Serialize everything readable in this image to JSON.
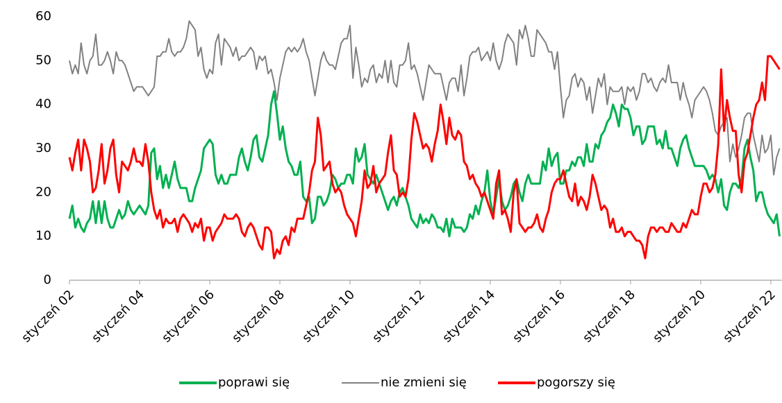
{
  "chart_data": {
    "type": "line",
    "categories": [
      "styczeń 02",
      null,
      null,
      null,
      null,
      null,
      null,
      null,
      null,
      null,
      null,
      null,
      null,
      null,
      null,
      null,
      null,
      null,
      null,
      null,
      null,
      null,
      null,
      null,
      "styczeń 04",
      null,
      null,
      null,
      null,
      null,
      null,
      null,
      null,
      null,
      null,
      null,
      null,
      null,
      null,
      null,
      null,
      null,
      null,
      null,
      null,
      null,
      null,
      null,
      "styczeń 06",
      null,
      null,
      null,
      null,
      null,
      null,
      null,
      null,
      null,
      null,
      null,
      null,
      null,
      null,
      null,
      null,
      null,
      null,
      null,
      null,
      null,
      null,
      null,
      "styczeń 08",
      null,
      null,
      null,
      null,
      null,
      null,
      null,
      null,
      null,
      null,
      null,
      null,
      null,
      null,
      null,
      null,
      null,
      null,
      null,
      null,
      null,
      null,
      null,
      "styczeń 10",
      null,
      null,
      null,
      null,
      null,
      null,
      null,
      null,
      null,
      null,
      null,
      null,
      null,
      null,
      null,
      null,
      null,
      null,
      null,
      null,
      null,
      null,
      null,
      "styczeń 12",
      null,
      null,
      null,
      null,
      null,
      null,
      null,
      null,
      null,
      null,
      null,
      null,
      null,
      null,
      null,
      null,
      null,
      null,
      null,
      null,
      null,
      null,
      null,
      "styczeń 14",
      null,
      null,
      null,
      null,
      null,
      null,
      null,
      null,
      null,
      null,
      null,
      null,
      null,
      null,
      null,
      null,
      null,
      null,
      null,
      null,
      null,
      null,
      null,
      "styczeń 16",
      null,
      null,
      null,
      null,
      null,
      null,
      null,
      null,
      null,
      null,
      null,
      null,
      null,
      null,
      null,
      null,
      null,
      null,
      null,
      null,
      null,
      null,
      null,
      "styczeń 18",
      null,
      null,
      null,
      null,
      null,
      null,
      null,
      null,
      null,
      null,
      null,
      null,
      null,
      null,
      null,
      null,
      null,
      null,
      null,
      null,
      null,
      null,
      null,
      "styczeń 20",
      null,
      null,
      null,
      null,
      null,
      null,
      null,
      null,
      null,
      null,
      null,
      null,
      null,
      null,
      null,
      null,
      null,
      null,
      null,
      null,
      null,
      null,
      null,
      "styczeń 22",
      null,
      null,
      null
    ],
    "series": [
      {
        "name": "poprawi się",
        "color": "#00b050",
        "values": [
          14,
          17,
          12,
          14,
          12,
          11,
          13,
          14,
          18,
          13,
          18,
          13,
          18,
          14,
          12,
          12,
          14,
          16,
          14,
          15,
          18,
          16,
          15,
          16,
          17,
          16,
          15,
          17,
          29,
          30,
          23,
          26,
          21,
          24,
          21,
          24,
          27,
          23,
          21,
          21,
          21,
          18,
          18,
          21,
          23,
          25,
          30,
          31,
          32,
          31,
          24,
          22,
          24,
          22,
          22,
          24,
          24,
          24,
          28,
          30,
          27,
          25,
          28,
          32,
          33,
          28,
          27,
          30,
          33,
          40,
          43,
          38,
          32,
          35,
          30,
          27,
          26,
          24,
          24,
          27,
          19,
          18,
          19,
          13,
          14,
          19,
          19,
          17,
          18,
          20,
          24,
          23,
          21,
          22,
          22,
          24,
          24,
          22,
          30,
          27,
          28,
          31,
          24,
          23,
          22,
          24,
          22,
          20,
          18,
          16,
          18,
          19,
          17,
          20,
          21,
          19,
          17,
          14,
          13,
          12,
          15,
          13,
          14,
          13,
          15,
          14,
          12,
          12,
          11,
          14,
          10,
          14,
          12,
          12,
          12,
          11,
          12,
          15,
          14,
          17,
          15,
          18,
          20,
          25,
          18,
          15,
          19,
          23,
          18,
          16,
          17,
          19,
          22,
          23,
          20,
          18,
          22,
          24,
          22,
          22,
          22,
          22,
          27,
          25,
          30,
          26,
          28,
          29,
          22,
          22,
          25,
          25,
          27,
          26,
          28,
          28,
          26,
          31,
          27,
          27,
          31,
          30,
          33,
          34,
          36,
          37,
          40,
          38,
          35,
          40,
          39,
          39,
          37,
          33,
          35,
          35,
          31,
          32,
          35,
          35,
          35,
          31,
          32,
          30,
          34,
          30,
          30,
          28,
          26,
          30,
          32,
          33,
          30,
          28,
          26,
          26,
          26,
          26,
          25,
          23,
          24,
          23,
          20,
          23,
          17,
          16,
          20,
          22,
          22,
          21,
          23,
          30,
          32,
          28,
          25,
          18,
          20,
          20,
          17,
          15,
          14,
          13,
          15,
          10
        ]
      },
      {
        "name": "nie zmieni się",
        "color": "#808080",
        "values": [
          50,
          47,
          49,
          47,
          54,
          49,
          47,
          50,
          51,
          56,
          49,
          49,
          50,
          52,
          50,
          47,
          52,
          50,
          50,
          49,
          47,
          45,
          43,
          44,
          44,
          44,
          43,
          42,
          43,
          44,
          51,
          51,
          52,
          52,
          55,
          52,
          51,
          52,
          52,
          53,
          55,
          59,
          58,
          57,
          51,
          53,
          48,
          46,
          48,
          47,
          54,
          56,
          49,
          55,
          54,
          53,
          51,
          53,
          50,
          51,
          51,
          52,
          53,
          52,
          48,
          51,
          50,
          51,
          47,
          48,
          45,
          41,
          46,
          49,
          52,
          53,
          52,
          53,
          52,
          53,
          55,
          52,
          50,
          46,
          42,
          46,
          50,
          52,
          50,
          49,
          49,
          48,
          51,
          54,
          55,
          55,
          58,
          46,
          53,
          49,
          44,
          46,
          45,
          48,
          49,
          45,
          47,
          46,
          50,
          45,
          50,
          45,
          44,
          49,
          49,
          50,
          54,
          48,
          49,
          47,
          44,
          41,
          45,
          49,
          48,
          47,
          47,
          47,
          44,
          41,
          45,
          46,
          46,
          43,
          49,
          42,
          46,
          51,
          52,
          52,
          53,
          50,
          51,
          52,
          50,
          54,
          50,
          48,
          50,
          54,
          56,
          55,
          54,
          49,
          57,
          55,
          58,
          55,
          51,
          51,
          57,
          56,
          55,
          54,
          52,
          52,
          48,
          52,
          44,
          37,
          41,
          42,
          46,
          47,
          44,
          46,
          45,
          41,
          44,
          38,
          42,
          46,
          44,
          47,
          40,
          44,
          43,
          43,
          43,
          44,
          40,
          44,
          43,
          44,
          41,
          43,
          47,
          47,
          45,
          46,
          44,
          43,
          45,
          46,
          45,
          49,
          45,
          45,
          45,
          41,
          45,
          42,
          40,
          37,
          41,
          42,
          43,
          44,
          43,
          41,
          38,
          34,
          33,
          35,
          36,
          37,
          27,
          31,
          28,
          30,
          33,
          37,
          38,
          38,
          33,
          30,
          27,
          33,
          29,
          30,
          33,
          24,
          28,
          30
        ]
      },
      {
        "name": "pogorszy się",
        "color": "#ff0000",
        "values": [
          28,
          25,
          29,
          32,
          25,
          32,
          30,
          27,
          20,
          21,
          25,
          31,
          22,
          25,
          30,
          32,
          24,
          20,
          27,
          26,
          25,
          27,
          30,
          27,
          27,
          26,
          31,
          27,
          20,
          16,
          14,
          16,
          12,
          14,
          13,
          13,
          14,
          11,
          14,
          15,
          14,
          13,
          11,
          13,
          12,
          14,
          9,
          12,
          12,
          9,
          11,
          12,
          13,
          15,
          14,
          14,
          14,
          15,
          14,
          11,
          10,
          12,
          13,
          12,
          10,
          8,
          7,
          12,
          12,
          11,
          5,
          7,
          6,
          9,
          10,
          8,
          12,
          11,
          14,
          14,
          14,
          17,
          20,
          25,
          27,
          37,
          33,
          25,
          26,
          27,
          22,
          20,
          21,
          20,
          17,
          15,
          14,
          13,
          10,
          14,
          18,
          25,
          21,
          22,
          26,
          20,
          22,
          23,
          24,
          29,
          33,
          25,
          24,
          19,
          20,
          19,
          23,
          32,
          38,
          36,
          33,
          30,
          31,
          30,
          27,
          31,
          34,
          40,
          36,
          31,
          37,
          33,
          32,
          34,
          33,
          27,
          26,
          23,
          24,
          22,
          21,
          19,
          20,
          18,
          16,
          14,
          22,
          25,
          15,
          16,
          14,
          11,
          20,
          23,
          13,
          12,
          11,
          12,
          12,
          13,
          15,
          12,
          11,
          14,
          16,
          20,
          22,
          23,
          23,
          25,
          22,
          19,
          18,
          22,
          17,
          19,
          18,
          16,
          19,
          24,
          22,
          19,
          16,
          17,
          16,
          12,
          14,
          11,
          11,
          12,
          10,
          11,
          11,
          10,
          9,
          9,
          8,
          5,
          10,
          12,
          12,
          11,
          12,
          12,
          11,
          11,
          13,
          12,
          11,
          11,
          13,
          12,
          14,
          16,
          15,
          15,
          19,
          22,
          22,
          20,
          21,
          24,
          31,
          48,
          34,
          41,
          37,
          34,
          34,
          24,
          20,
          27,
          29,
          33,
          37,
          40,
          41,
          45,
          41,
          51,
          51,
          50,
          49,
          48
        ]
      }
    ],
    "ylim": [
      0,
      60
    ],
    "yticks": [
      0,
      10,
      20,
      30,
      40,
      50,
      60
    ],
    "grid": false,
    "legend": "bottom"
  }
}
